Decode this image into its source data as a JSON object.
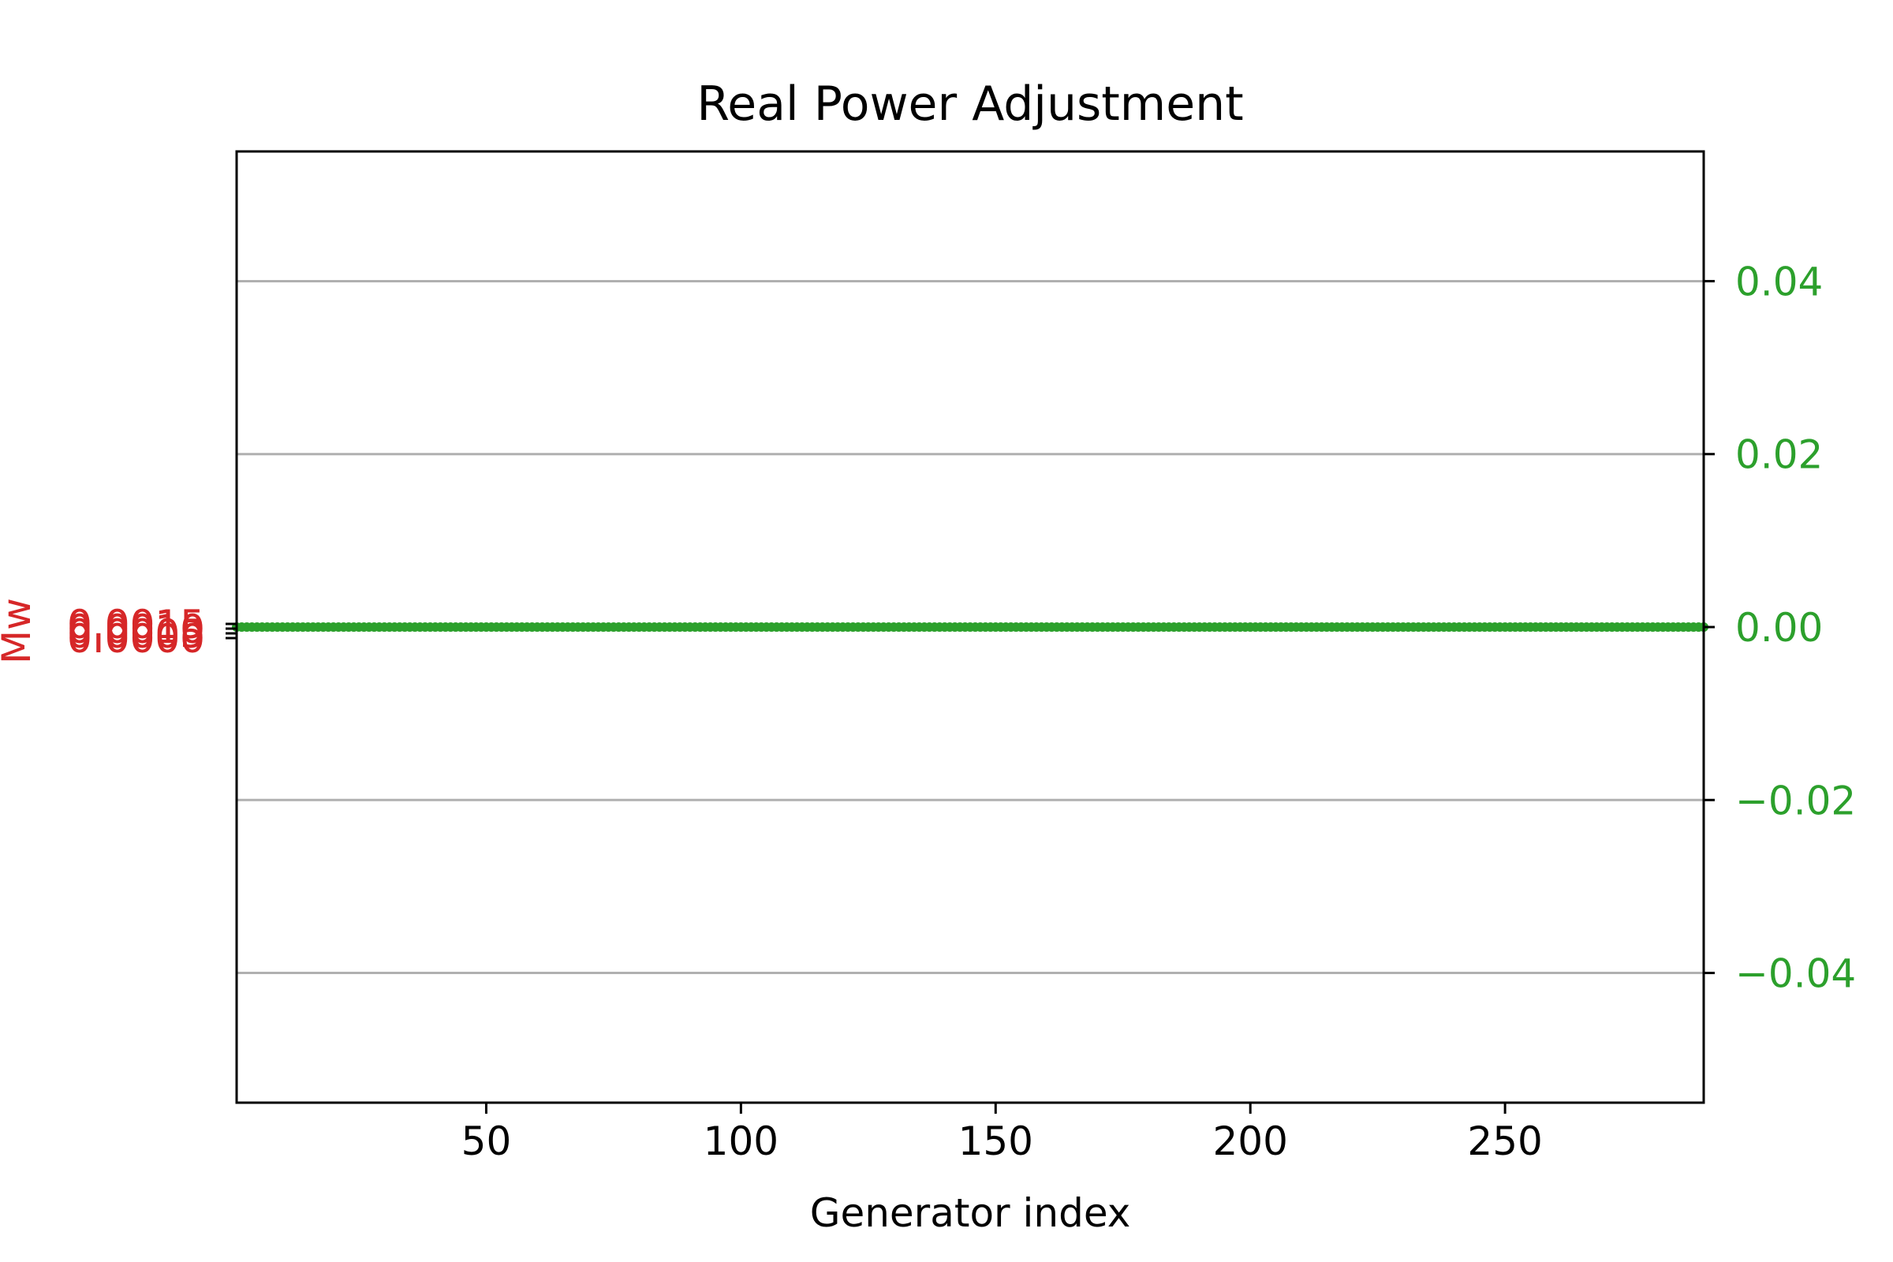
{
  "chart_data": {
    "type": "scatter",
    "title": "Real Power Adjustment",
    "xlabel": "Generator index",
    "ylabel_left": "Mw",
    "ylabel_right": "",
    "xlim": [
      1,
      289
    ],
    "xticks": [
      50,
      100,
      150,
      200,
      250
    ],
    "left_axis": {
      "ylim": [
        -4e-07,
        1.6e-06
      ],
      "ticks": [
        0.0,
        0.0005,
        0.001,
        0.0015
      ],
      "tick_labels": [
        "0.0000",
        "0.0005",
        "0.0010",
        "0.0015"
      ],
      "color": "#d62728"
    },
    "right_axis": {
      "ylim": [
        -0.055,
        0.055
      ],
      "ticks": [
        -0.04,
        -0.02,
        0.0,
        0.02,
        0.04
      ],
      "tick_labels": [
        "−0.04",
        "−0.02",
        "0.00",
        "0.02",
        "0.04"
      ],
      "color": "#2ca02c"
    },
    "series": [
      {
        "axis": "right",
        "color": "#2ca02c",
        "x_start": 1,
        "x_end": 289,
        "x_step": 1,
        "y_constant": 0.0
      }
    ],
    "grid": true
  }
}
